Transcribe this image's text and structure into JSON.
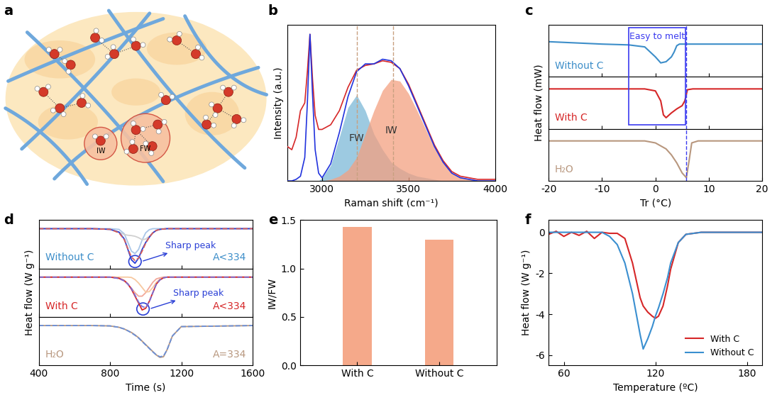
{
  "diagram": {
    "panel_label": "a",
    "circles": [
      {
        "label": "IW"
      },
      {
        "label": "FW"
      }
    ]
  },
  "chart_data": [
    {
      "panel_label": "b",
      "type": "line",
      "xlabel": "Raman shift (cm⁻¹)",
      "ylabel": "Intensity (a.u.)",
      "x": [
        2800,
        2825,
        2850,
        2875,
        2900,
        2915,
        2930,
        2945,
        2960,
        2980,
        3000,
        3050,
        3100,
        3150,
        3200,
        3250,
        3300,
        3350,
        3400,
        3450,
        3500,
        3550,
        3600,
        3650,
        3700,
        3750,
        3800,
        3900,
        4000
      ],
      "series": [
        {
          "name": "FW",
          "type": "area",
          "color": "#7db9d8",
          "values": [
            0,
            0,
            0,
            0,
            0,
            0,
            0,
            0,
            0,
            0,
            0.02,
            0.1,
            0.28,
            0.47,
            0.55,
            0.45,
            0.3,
            0.2,
            0.12,
            0.08,
            0.05,
            0.03,
            0.02,
            0.01,
            0,
            0,
            0,
            0,
            0
          ]
        },
        {
          "name": "IW",
          "type": "area",
          "color": "#f4a080",
          "values": [
            0,
            0,
            0,
            0,
            0,
            0,
            0,
            0,
            0,
            0,
            0,
            0.01,
            0.03,
            0.07,
            0.15,
            0.3,
            0.45,
            0.58,
            0.65,
            0.64,
            0.56,
            0.45,
            0.33,
            0.21,
            0.12,
            0.05,
            0.02,
            0,
            0
          ]
        },
        {
          "type": "line",
          "color": "#d62728",
          "values": [
            0.22,
            0.2,
            0.28,
            0.45,
            0.5,
            0.7,
            0.94,
            0.65,
            0.42,
            0.33,
            0.33,
            0.36,
            0.45,
            0.6,
            0.71,
            0.74,
            0.75,
            0.77,
            0.76,
            0.72,
            0.62,
            0.49,
            0.36,
            0.23,
            0.13,
            0.06,
            0.03,
            0.01,
            0.01
          ]
        },
        {
          "type": "line",
          "color": "#2233dd",
          "values": [
            0,
            0,
            0.01,
            0.03,
            0.15,
            0.5,
            0.94,
            0.55,
            0.2,
            0.05,
            0.02,
            0.11,
            0.31,
            0.54,
            0.7,
            0.75,
            0.75,
            0.78,
            0.77,
            0.72,
            0.61,
            0.48,
            0.35,
            0.22,
            0.12,
            0.05,
            0.02,
            0,
            0
          ]
        }
      ],
      "xlim": [
        2800,
        4000
      ],
      "xticks": [
        3000,
        3500,
        4000
      ],
      "ylim": [
        0,
        1
      ],
      "tick_labels": "x",
      "reference_lines": [
        3200,
        3410
      ]
    },
    {
      "panel_label": "c",
      "type": "line",
      "xlabel": "Tr (°C)",
      "ylabel": "Heat flow (mW)",
      "xlim": [
        -20,
        20
      ],
      "xticks": [
        -20,
        -10,
        0,
        10,
        20
      ],
      "tick_labels": "x",
      "subpanels": [
        {
          "name": "Without C",
          "color": "#3d8ec9",
          "ylim": [
            -0.8,
            0.5
          ],
          "x": [
            -20,
            -15,
            -10,
            -5,
            -2,
            0,
            1,
            2,
            3,
            3.5,
            4,
            4.5,
            5,
            10,
            20
          ],
          "values": [
            0.08,
            0.05,
            0.02,
            0,
            -0.05,
            -0.3,
            -0.45,
            -0.42,
            -0.3,
            -0.18,
            -0.02,
            0.02,
            0.02,
            0.02,
            0.02
          ]
        },
        {
          "name": "With C",
          "color": "#d62728",
          "ylim": [
            -1,
            0.3
          ],
          "x": [
            -20,
            -5,
            -2,
            0,
            1,
            1.5,
            2,
            3,
            4,
            5,
            5.5,
            6,
            7,
            20
          ],
          "values": [
            0,
            0,
            0,
            -0.05,
            -0.3,
            -0.65,
            -0.72,
            -0.6,
            -0.5,
            -0.42,
            -0.3,
            -0.02,
            0,
            0
          ]
        },
        {
          "name": "H₂O",
          "color": "#b8977e",
          "ylim": [
            -1,
            0.3
          ],
          "x": [
            -20,
            -5,
            -2,
            0,
            2,
            3,
            4,
            5,
            5.8,
            6.3,
            6.8,
            8,
            20
          ],
          "values": [
            0,
            0,
            0,
            -0.05,
            -0.2,
            -0.35,
            -0.55,
            -0.8,
            -0.92,
            -0.5,
            -0.05,
            0,
            0
          ]
        }
      ],
      "annotations": [
        {
          "text": "Easy to melt",
          "x_range": [
            -5,
            5.6
          ],
          "color": "#3b3bf0"
        }
      ],
      "reference_lines": [
        5.8
      ]
    },
    {
      "panel_label": "d",
      "type": "line",
      "xlabel": "Time (s)",
      "ylabel": "Heat flow (W g⁻¹)",
      "xlim": [
        400,
        1600
      ],
      "xticks": [
        400,
        800,
        1200,
        1600
      ],
      "tick_labels": "x",
      "x": [
        400,
        700,
        800,
        850,
        880,
        900,
        920,
        940,
        960,
        980,
        1000,
        1020,
        1040,
        1060,
        1080,
        1100,
        1120,
        1150,
        1200,
        1600
      ],
      "subpanels": [
        {
          "name": "Without C",
          "color": "#3d8ec9",
          "note": "A<334",
          "ylim": [
            -1.15,
            0.25
          ],
          "series": [
            {
              "color": "#a9c6e8",
              "line_style": "solid",
              "values": [
                0,
                0,
                0,
                -0.02,
                -0.15,
                -0.4,
                -0.65,
                -0.72,
                -0.6,
                -0.33,
                -0.12,
                -0.03,
                0,
                0,
                0,
                0,
                0,
                0,
                0,
                0
              ]
            },
            {
              "color": "#d0d0d0",
              "line_style": "solid",
              "values": [
                0,
                0,
                -0.02,
                -0.1,
                -0.17,
                -0.19,
                -0.2,
                -0.22,
                -0.26,
                -0.32,
                -0.3,
                -0.22,
                -0.12,
                -0.05,
                -0.02,
                -0.01,
                0,
                0,
                0,
                0
              ]
            },
            {
              "color": "#2a3fd6",
              "line_style": "solid",
              "values": [
                0,
                0,
                -0.02,
                -0.1,
                -0.3,
                -0.6,
                -0.9,
                -1.0,
                -0.85,
                -0.6,
                -0.4,
                -0.25,
                -0.12,
                -0.05,
                -0.02,
                -0.01,
                0,
                0,
                0,
                0
              ]
            },
            {
              "color": "#d9605a",
              "line_style": "dashed",
              "values": [
                0,
                0,
                -0.02,
                -0.12,
                -0.32,
                -0.58,
                -0.82,
                -0.92,
                -0.85,
                -0.65,
                -0.42,
                -0.25,
                -0.12,
                -0.05,
                -0.02,
                -0.01,
                0,
                0,
                0,
                0
              ]
            }
          ],
          "annotations": [
            {
              "text": "Sharp peak",
              "x": 940,
              "y": -0.95,
              "color": "#2a3fd6"
            }
          ]
        },
        {
          "name": "With C",
          "color": "#d62728",
          "note": "A<334",
          "ylim": [
            -1.15,
            0.25
          ],
          "series": [
            {
              "color": "#f2a89a",
              "line_style": "solid",
              "values": [
                0,
                0,
                0,
                -0.04,
                -0.11,
                -0.2,
                -0.32,
                -0.45,
                -0.55,
                -0.55,
                -0.45,
                -0.3,
                -0.15,
                -0.05,
                -0.02,
                0,
                0,
                0,
                0,
                0
              ]
            },
            {
              "color": "#f7c8a0",
              "line_style": "solid",
              "values": [
                0,
                0,
                0,
                0,
                0,
                0,
                -0.01,
                -0.07,
                -0.17,
                -0.3,
                -0.43,
                -0.42,
                -0.3,
                -0.15,
                -0.06,
                -0.02,
                0,
                0,
                0,
                0
              ]
            },
            {
              "color": "#d62728",
              "line_style": "solid",
              "values": [
                0,
                0,
                0,
                -0.03,
                -0.1,
                -0.2,
                -0.35,
                -0.55,
                -0.75,
                -0.95,
                -0.9,
                -0.7,
                -0.45,
                -0.2,
                -0.08,
                -0.02,
                0,
                0,
                0,
                0
              ]
            },
            {
              "color": "#7b6fd6",
              "line_style": "dashed",
              "values": [
                0,
                0,
                0,
                -0.04,
                -0.11,
                -0.2,
                -0.33,
                -0.52,
                -0.72,
                -0.85,
                -0.88,
                -0.72,
                -0.45,
                -0.2,
                -0.08,
                -0.02,
                0,
                0,
                0,
                0
              ]
            }
          ],
          "annotations": [
            {
              "text": "Sharp peak",
              "x": 985,
              "y": -0.92,
              "color": "#2a3fd6"
            }
          ]
        },
        {
          "name": "H₂O",
          "color": "#b8977e",
          "note": "A=334",
          "ylim": [
            -1.15,
            0.25
          ],
          "series": [
            {
              "color": "#b8977e",
              "line_style": "solid",
              "values": [
                0,
                0,
                -0.01,
                -0.05,
                -0.1,
                -0.15,
                -0.2,
                -0.27,
                -0.35,
                -0.45,
                -0.55,
                -0.65,
                -0.75,
                -0.85,
                -0.92,
                -0.9,
                -0.7,
                -0.3,
                -0.03,
                0
              ]
            },
            {
              "color": "#6a8fd8",
              "line_style": "dashed",
              "values": [
                0,
                0,
                -0.01,
                -0.05,
                -0.1,
                -0.15,
                -0.21,
                -0.28,
                -0.36,
                -0.46,
                -0.56,
                -0.66,
                -0.76,
                -0.85,
                -0.9,
                -0.88,
                -0.7,
                -0.3,
                -0.03,
                0
              ]
            }
          ],
          "annotations": []
        }
      ]
    },
    {
      "panel_label": "e",
      "type": "bar",
      "ylabel": "IW/FW",
      "categories": [
        "With C",
        "Without C"
      ],
      "values": [
        1.43,
        1.3
      ],
      "color": "#f5a98a",
      "ylim": [
        0,
        1.5
      ],
      "yticks": [
        {
          "value": 0,
          "label": "0.0"
        },
        {
          "value": 0.5,
          "label": "0.5"
        },
        {
          "value": 1,
          "label": "1.0"
        },
        {
          "value": 1.5,
          "label": "1.5"
        }
      ]
    },
    {
      "panel_label": "f",
      "type": "line",
      "xlabel": "Temperature (ºC)",
      "ylabel": "Heat flow (W g⁻¹)",
      "x": [
        50,
        55,
        60,
        65,
        70,
        75,
        80,
        85,
        90,
        95,
        100,
        105,
        110,
        112,
        115,
        118,
        120,
        122,
        125,
        128,
        130,
        135,
        140,
        150,
        170,
        190
      ],
      "series": [
        {
          "name": "With C",
          "color": "#d62728",
          "values": [
            -0.1,
            0.05,
            -0.2,
            0.0,
            -0.15,
            0.05,
            -0.3,
            0.0,
            -0.05,
            -0.05,
            -0.3,
            -1.5,
            -3.2,
            -3.6,
            -3.9,
            -4.1,
            -4.2,
            -4.1,
            -3.6,
            -2.6,
            -1.8,
            -0.5,
            -0.1,
            0,
            0,
            0
          ]
        },
        {
          "name": "Without C",
          "color": "#3a8fd0",
          "values": [
            0,
            0,
            0,
            0,
            0,
            0,
            0,
            0,
            -0.2,
            -0.6,
            -1.5,
            -3.0,
            -5.0,
            -5.7,
            -5.2,
            -4.6,
            -4.1,
            -3.7,
            -3.0,
            -2.2,
            -1.5,
            -0.5,
            -0.1,
            0,
            0,
            0
          ]
        }
      ],
      "xlim": [
        50,
        190
      ],
      "xticks": [
        60,
        120,
        180
      ],
      "ylim": [
        -6.5,
        0.6
      ],
      "yticks": [
        0,
        -2,
        -4,
        -6
      ],
      "legend": "lower right"
    }
  ]
}
